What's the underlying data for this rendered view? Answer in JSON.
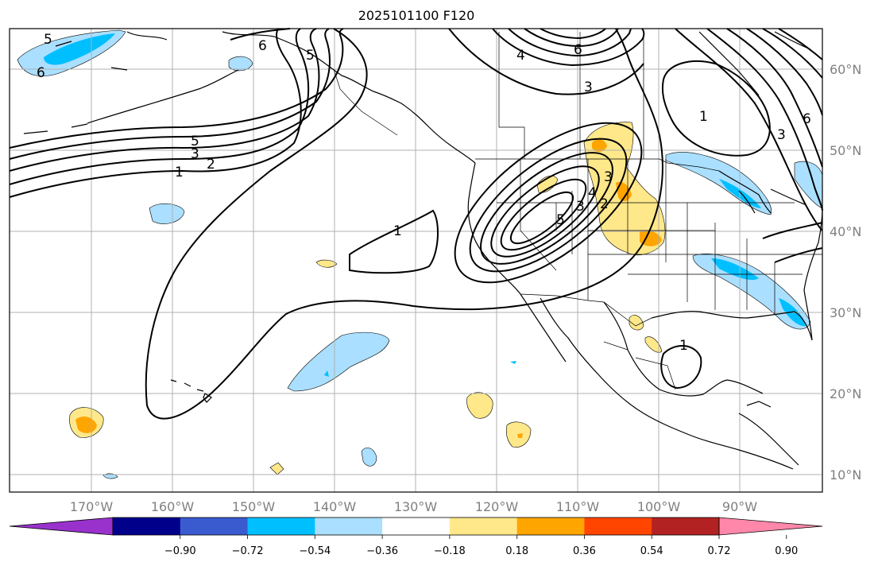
{
  "title": "2025101100 F120",
  "map": {
    "lon_labels": [
      "170°W",
      "160°W",
      "150°W",
      "140°W",
      "130°W",
      "120°W",
      "110°W",
      "100°W",
      "90°W"
    ],
    "lat_labels": [
      "60°N",
      "50°N",
      "40°N",
      "30°N",
      "20°N",
      "10°N"
    ],
    "contour_labels": [
      "5",
      "6",
      "6",
      "4",
      "3",
      "6",
      "5",
      "3",
      "2",
      "1",
      "1",
      "1",
      "6",
      "3",
      "1",
      "5",
      "4",
      "3",
      "3",
      "2",
      "1"
    ]
  },
  "colorbar": {
    "colors": [
      "#9932cc",
      "#00008b",
      "#3a5bcf",
      "#00bfff",
      "#aadfff",
      "#ffffff",
      "#ffe88a",
      "#ffa500",
      "#ff4500",
      "#b22222",
      "#ff88aa"
    ],
    "tick_labels": [
      "−0.90",
      "−0.72",
      "−0.54",
      "−0.36",
      "−0.18",
      "0.18",
      "0.36",
      "0.54",
      "0.72",
      "0.90"
    ]
  },
  "shading": {
    "neg_light": "#aadfff",
    "neg_mid": "#00bfff",
    "pos_light": "#ffe88a",
    "pos_mid": "#ffa500"
  }
}
